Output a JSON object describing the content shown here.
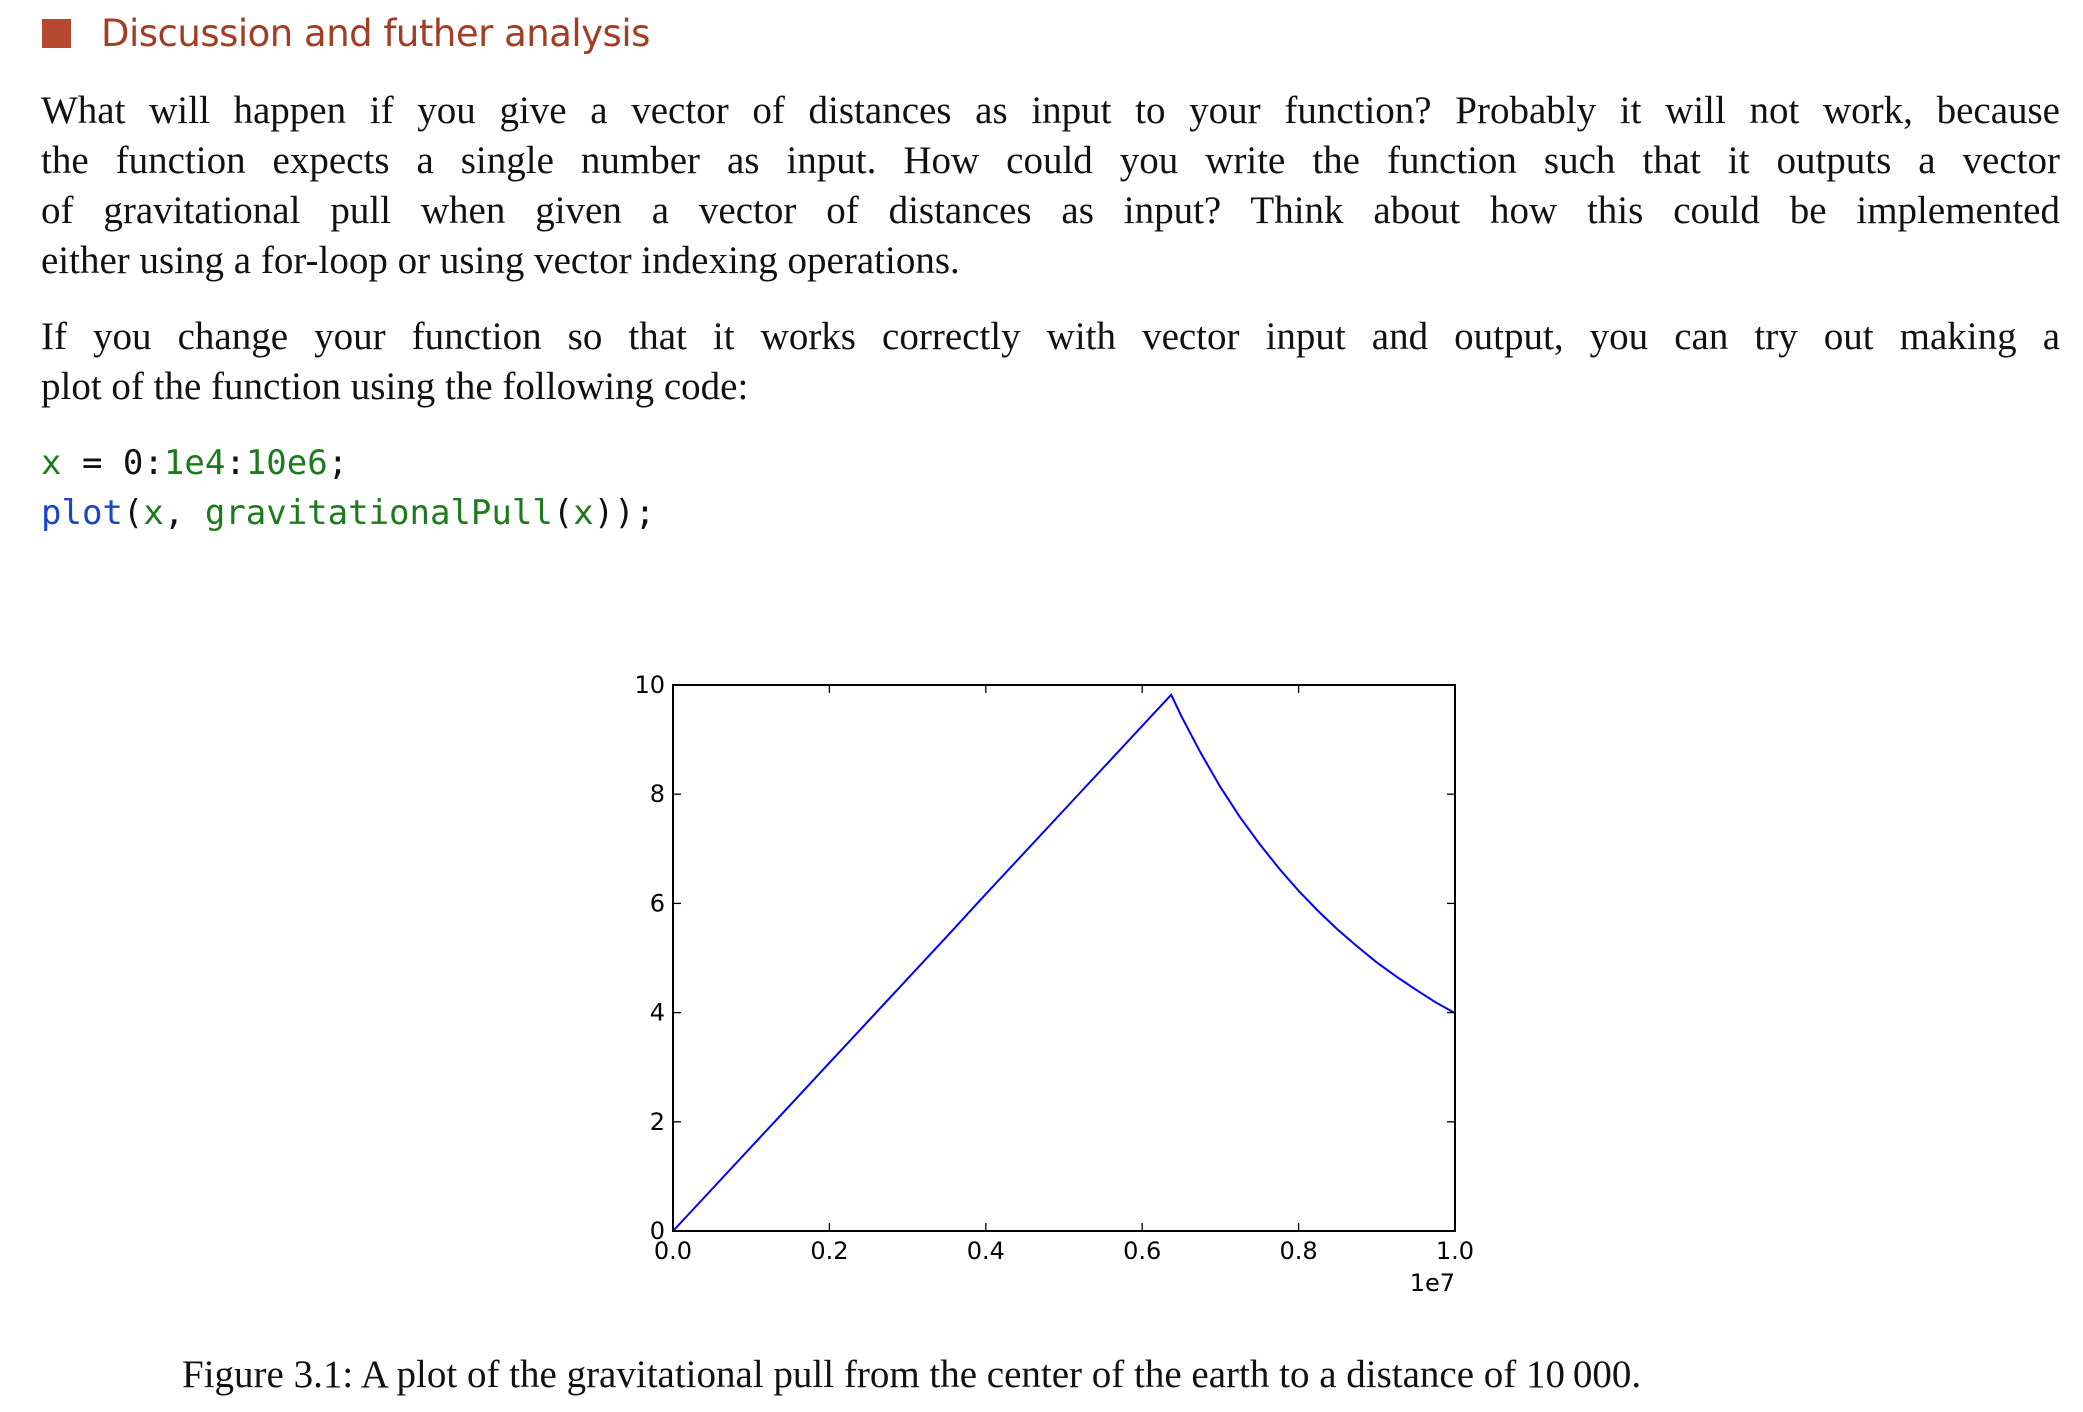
{
  "section": {
    "title": "Discussion and futher analysis",
    "bullet_color": "#b5482f"
  },
  "paragraphs": [
    {
      "lines": [
        "What will happen if you give a vector of distances as input to your function? Probably it will not work, because",
        "the function expects a single number as input. How could you write the function such that it outputs a vector",
        "of gravitational pull when given a vector of distances as input? Think about how this could be implemented",
        "either using a for-loop or using vector indexing operations."
      ]
    },
    {
      "lines": [
        "If you change your function so that it works correctly with vector input and output, you can try out making a",
        "plot of the function using the following code:"
      ]
    }
  ],
  "code": {
    "line1": {
      "var": "x",
      "eq": " = ",
      "n0": "0",
      "c1": ":",
      "n1": "1e4",
      "c2": ":",
      "n2": "10e6",
      "end": ";"
    },
    "line2": {
      "fn": "plot",
      "open": "(",
      "arg1": "x",
      "comma": ", ",
      "fn2": "gravitationalPull",
      "open2": "(",
      "arg2": "x",
      "close": "));"
    }
  },
  "chart_data": {
    "type": "line",
    "xlim": [
      0,
      10000000
    ],
    "ylim": [
      0,
      10
    ],
    "x_ticks": [
      "0.0",
      "0.2",
      "0.4",
      "0.6",
      "0.8",
      "1.0"
    ],
    "x_offset_label": "1e7",
    "y_ticks": [
      "0",
      "2",
      "4",
      "6",
      "8",
      "10"
    ],
    "grid": false,
    "line_color": "#0000ff",
    "series": [
      {
        "x": [
          0,
          500000,
          1000000,
          1500000,
          2000000,
          2500000,
          3000000,
          3500000,
          4000000,
          4500000,
          5000000,
          5500000,
          6000000,
          6371000,
          6500000,
          6750000,
          7000000,
          7250000,
          7500000,
          7750000,
          8000000,
          8250000,
          8500000,
          8750000,
          9000000,
          9250000,
          9500000,
          9750000,
          10000000
        ],
        "y": [
          0,
          0.77,
          1.54,
          2.31,
          3.08,
          3.85,
          4.62,
          5.39,
          6.17,
          6.94,
          7.71,
          8.48,
          9.25,
          9.82,
          9.43,
          8.75,
          8.13,
          7.58,
          7.09,
          6.64,
          6.23,
          5.86,
          5.52,
          5.21,
          4.92,
          4.66,
          4.42,
          4.19,
          3.99
        ]
      }
    ]
  },
  "caption": "Figure 3.1: A plot of the gravitational pull from the center of the earth to a distance of 10 000."
}
